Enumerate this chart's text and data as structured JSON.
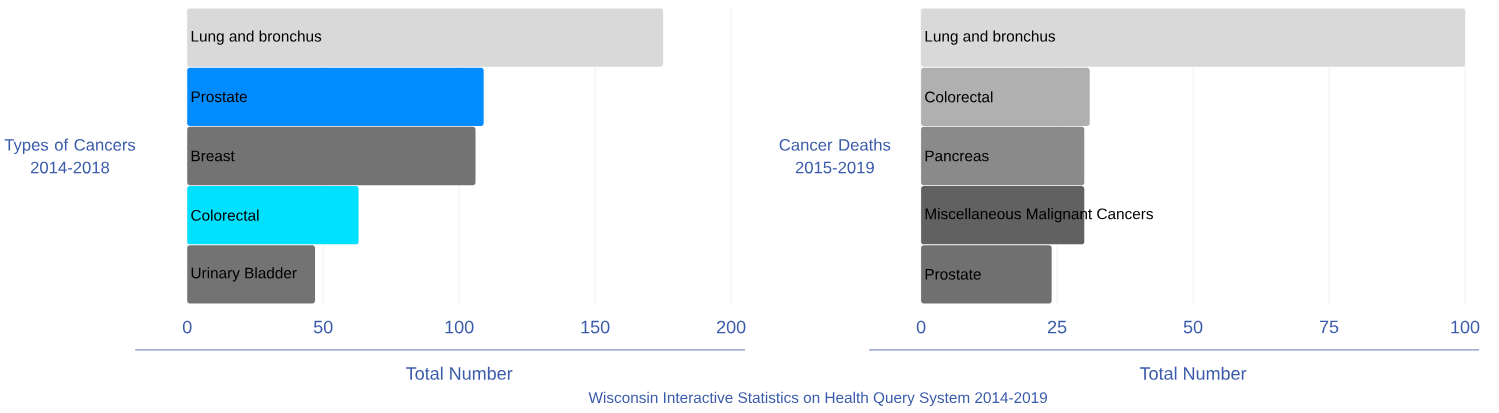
{
  "chart_data": [
    {
      "type": "bar",
      "orientation": "horizontal",
      "ylabel": "Types of Cancers 2014-2018",
      "xlabel": "Total Number",
      "categories": [
        "Lung and bronchus",
        "Prostate",
        "Breast",
        "Colorectal",
        "Urinary Bladder"
      ],
      "values": [
        175,
        109,
        106,
        63,
        47
      ],
      "colors": [
        "#d9d9d9",
        "#008cff",
        "#737373",
        "#00e1ff",
        "#737373"
      ],
      "xlim": [
        0,
        200
      ],
      "xticks": [
        0,
        50,
        100,
        150,
        200
      ],
      "grid": "x",
      "annotations": [
        "Wisconsin Interactive Statistics on Health Query System 2014-2019"
      ]
    },
    {
      "type": "bar",
      "orientation": "horizontal",
      "ylabel": "Cancer Deaths 2015-2019",
      "xlabel": "Total Number",
      "categories": [
        "Lung and bronchus",
        "Colorectal",
        "Pancreas",
        "Miscellaneous Malignant Cancers",
        "Prostate"
      ],
      "values": [
        100,
        31,
        30,
        30,
        24
      ],
      "colors": [
        "#d9d9d9",
        "#b0b0b0",
        "#8a8a8a",
        "#616161",
        "#707070"
      ],
      "xlim": [
        0,
        100
      ],
      "xticks": [
        0,
        25,
        50,
        75,
        100
      ],
      "grid": "x"
    }
  ]
}
